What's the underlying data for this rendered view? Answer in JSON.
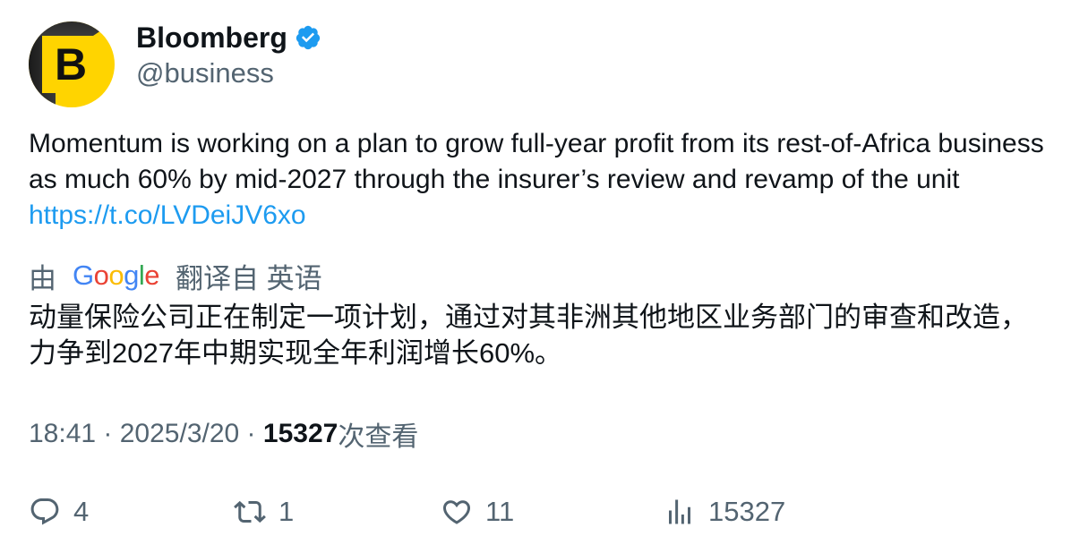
{
  "author": {
    "display_name": "Bloomberg",
    "handle": "@business",
    "avatar_letter": "B",
    "verified": true,
    "verified_color": "#1d9bf0",
    "avatar_color": "#ffd400"
  },
  "tweet": {
    "text": "Momentum is working on a plan to grow full-year profit from its rest-of-Africa business as much 60% by mid-2027 through the insurer’s review and revamp of the unit ",
    "link_text": "https://t.co/LVDeiJV6xo",
    "link_color": "#1d9bf0"
  },
  "translation": {
    "prefix": "由",
    "provider": "Google",
    "suffix": "翻译自 英语",
    "text": "动量保险公司正在制定一项计划，通过对其非洲其他地区业务部门的审查和改造，力争到2027年中期实现全年利润增长60%。"
  },
  "meta": {
    "time": "18:41",
    "separator": " · ",
    "date": "2025/3/20",
    "views_count": "15327",
    "views_label": "次查看"
  },
  "actions": {
    "replies": {
      "icon": "reply-icon",
      "count": "4"
    },
    "reposts": {
      "icon": "repost-icon",
      "count": "1"
    },
    "likes": {
      "icon": "heart-icon",
      "count": "11"
    },
    "views": {
      "icon": "analytics-icon",
      "count": "15327"
    }
  }
}
